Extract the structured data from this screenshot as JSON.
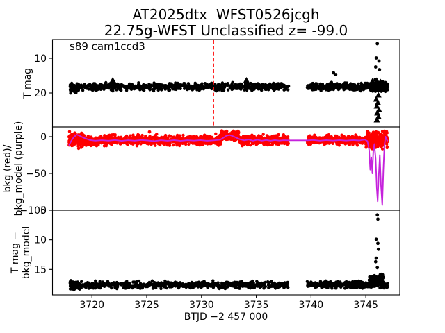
{
  "colors": {
    "data_black": "#000000",
    "data_red": "#ff0000",
    "model_purple": "#c522dc",
    "vline_red": "#ff1212",
    "frame": "#000000"
  },
  "chart_data": {
    "type": "scatter",
    "title": "AT2025dtx  WFST0526jcgh",
    "subtitle": "22.75g-WFST Unclassified z= -99.0",
    "annotation": "s89 cam1ccd3",
    "xlabel": "BTJD −2 457 000",
    "x_axis": {
      "lim": [
        3716.4,
        3748.1
      ],
      "ticks": [
        3720,
        3725,
        3730,
        3735,
        3740,
        3745
      ],
      "tick_labels": [
        "3720",
        "3725",
        "3730",
        "3735",
        "3740",
        "3745"
      ]
    },
    "panels": [
      {
        "name": "tmag",
        "ylabel_lines": [
          "T mag"
        ],
        "ylim_top": 4.6,
        "ylim_bottom": 29.8,
        "yticks": [
          10,
          20
        ],
        "ytick_labels": [
          "10",
          "20"
        ],
        "marker_color": "#000000",
        "vline": {
          "x": 3731.1,
          "color": "#ff1212",
          "dash": "5 3.4"
        },
        "band_segments": [
          {
            "t0": 3718.0,
            "t1": 3718.8,
            "center": 18.6,
            "spread": 2.0,
            "n": 90
          },
          {
            "t0": 3718.6,
            "t1": 3737.95,
            "center": 18.2,
            "spread": 1.5,
            "n": 680
          },
          {
            "t0": 3739.65,
            "t1": 3745.7,
            "center": 18.2,
            "spread": 1.5,
            "n": 300
          },
          {
            "t0": 3745.6,
            "t1": 3747.0,
            "center": 18.3,
            "spread": 2.0,
            "n": 130
          }
        ],
        "dots": [
          [
            3746.05,
            5.8
          ],
          [
            3745.95,
            9.9
          ],
          [
            3746.2,
            10.8
          ],
          [
            3745.9,
            12.5
          ],
          [
            3746.25,
            13.3
          ],
          [
            3745.85,
            16.2
          ],
          [
            3742.05,
            14.2
          ],
          [
            3742.25,
            14.7
          ],
          [
            3746.05,
            28.0
          ]
        ],
        "triangles": [
          [
            3721.9,
            16.3
          ],
          [
            3734.1,
            16.3
          ],
          [
            3745.6,
            16.6
          ],
          [
            3746.0,
            16.4
          ],
          [
            3746.35,
            16.8
          ],
          [
            3746.6,
            17.4
          ],
          [
            3746.15,
            20.6
          ],
          [
            3745.95,
            21.8
          ],
          [
            3746.1,
            22.8
          ],
          [
            3746.0,
            23.8
          ],
          [
            3746.2,
            24.8
          ],
          [
            3746.05,
            25.8
          ],
          [
            3746.15,
            26.8
          ],
          [
            3746.0,
            27.8
          ]
        ]
      },
      {
        "name": "bkg",
        "ylabel_lines": [
          "bkg (red)/",
          "bkg_model (purple)"
        ],
        "ylim_top": 13.2,
        "ylim_bottom": -100,
        "yticks": [
          0,
          -50,
          -100
        ],
        "ytick_labels": [
          "0",
          "−50",
          "−100"
        ],
        "marker_color": "#ff0000",
        "band_segments": [
          {
            "t0": 3717.9,
            "t1": 3719.3,
            "center": -4.5,
            "spread": 13,
            "n": 150
          },
          {
            "t0": 3719.3,
            "t1": 3720.6,
            "center": -7.0,
            "spread": 9.5,
            "n": 120
          },
          {
            "t0": 3720.6,
            "t1": 3731.8,
            "center": -4.7,
            "spread": 9.0,
            "n": 760
          },
          {
            "t0": 3731.8,
            "t1": 3733.4,
            "center": 1.5,
            "spread": 8.5,
            "n": 150
          },
          {
            "t0": 3733.4,
            "t1": 3737.95,
            "center": -5.0,
            "spread": 9.0,
            "n": 360
          },
          {
            "t0": 3739.65,
            "t1": 3745.1,
            "center": -4.7,
            "spread": 8.5,
            "n": 420
          },
          {
            "t0": 3745.0,
            "t1": 3747.0,
            "center": -5.0,
            "spread": 15,
            "n": 230
          }
        ],
        "dots": [
          [
            3725.25,
            6.5
          ]
        ],
        "triangles": [],
        "line": {
          "color": "#c522dc",
          "points": [
            [
              3717.9,
              -12
            ],
            [
              3718.1,
              -6
            ],
            [
              3718.35,
              -0.5
            ],
            [
              3718.6,
              2.8
            ],
            [
              3718.85,
              1.5
            ],
            [
              3719.1,
              -0.5
            ],
            [
              3719.4,
              -2.5
            ],
            [
              3719.8,
              -4.5
            ],
            [
              3720.3,
              -5.5
            ],
            [
              3720.9,
              -4.8
            ],
            [
              3721.5,
              -5.5
            ],
            [
              3722.1,
              -4.5
            ],
            [
              3722.7,
              -5.8
            ],
            [
              3723.3,
              -4.8
            ],
            [
              3723.9,
              -5.5
            ],
            [
              3724.5,
              -4.5
            ],
            [
              3725.1,
              -5.2
            ],
            [
              3725.7,
              -6.0
            ],
            [
              3726.3,
              -4.8
            ],
            [
              3726.9,
              -5.6
            ],
            [
              3727.5,
              -4.6
            ],
            [
              3728.1,
              -5.8
            ],
            [
              3728.7,
              -4.8
            ],
            [
              3729.3,
              -5.4
            ],
            [
              3729.9,
              -4.6
            ],
            [
              3730.5,
              -5.6
            ],
            [
              3731.1,
              -5.0
            ],
            [
              3731.7,
              -4.2
            ],
            [
              3732.0,
              -1.5
            ],
            [
              3732.3,
              1.5
            ],
            [
              3732.6,
              2.2
            ],
            [
              3732.9,
              0.5
            ],
            [
              3733.2,
              -1.5
            ],
            [
              3733.5,
              -3.5
            ],
            [
              3733.9,
              -5.0
            ],
            [
              3734.3,
              -4.0
            ],
            [
              3734.7,
              -5.5
            ],
            [
              3735.1,
              -4.2
            ],
            [
              3735.5,
              -5.5
            ],
            [
              3735.9,
              -4.5
            ],
            [
              3736.3,
              -5.5
            ],
            [
              3736.7,
              -4.6
            ],
            [
              3737.1,
              -5.4
            ],
            [
              3737.5,
              -4.8
            ],
            [
              3737.95,
              -5.0
            ],
            [
              3739.65,
              -5.0
            ],
            [
              3740.2,
              -4.5
            ],
            [
              3740.8,
              -5.5
            ],
            [
              3741.4,
              -4.6
            ],
            [
              3742.0,
              -5.4
            ],
            [
              3742.6,
              -4.6
            ],
            [
              3743.2,
              -5.4
            ],
            [
              3743.8,
              -4.6
            ],
            [
              3744.4,
              -5.2
            ],
            [
              3744.9,
              -4.0
            ],
            [
              3745.15,
              -6.0
            ],
            [
              3745.3,
              -18
            ],
            [
              3745.4,
              -45
            ],
            [
              3745.5,
              -28
            ],
            [
              3745.6,
              -50
            ],
            [
              3745.68,
              -20
            ],
            [
              3745.78,
              -10
            ],
            [
              3745.9,
              -30
            ],
            [
              3746.0,
              -70
            ],
            [
              3746.08,
              -88
            ],
            [
              3746.18,
              -55
            ],
            [
              3746.28,
              -25
            ],
            [
              3746.38,
              -65
            ],
            [
              3746.5,
              -93
            ],
            [
              3746.6,
              -45
            ],
            [
              3746.7,
              -12
            ],
            [
              3746.8,
              0
            ],
            [
              3746.9,
              -4
            ],
            [
              3747.0,
              -6
            ]
          ]
        }
      },
      {
        "name": "tmag-minus-bkgmodel",
        "ylabel_lines": [
          "T mag −",
          "bkg_model"
        ],
        "ylim_top": 5.0,
        "ylim_bottom": 19.3,
        "yticks": [
          5,
          10,
          15
        ],
        "ytick_labels": [
          "5",
          "10",
          "15"
        ],
        "marker_color": "#000000",
        "band_segments": [
          {
            "t0": 3718.0,
            "t1": 3718.9,
            "center": 17.7,
            "spread": 1.0,
            "n": 90
          },
          {
            "t0": 3718.8,
            "t1": 3737.95,
            "center": 17.6,
            "spread": 0.8,
            "n": 640
          },
          {
            "t0": 3739.65,
            "t1": 3745.4,
            "center": 17.6,
            "spread": 0.8,
            "n": 320
          },
          {
            "t0": 3745.3,
            "t1": 3746.6,
            "center": 16.9,
            "spread": 1.4,
            "n": 140
          },
          {
            "t0": 3746.5,
            "t1": 3747.0,
            "center": 17.7,
            "spread": 0.7,
            "n": 30
          }
        ],
        "dots": [
          [
            3746.05,
            5.8
          ],
          [
            3746.1,
            6.5
          ],
          [
            3745.95,
            9.9
          ],
          [
            3746.1,
            10.6
          ],
          [
            3746.15,
            11.6
          ],
          [
            3745.95,
            13.1
          ],
          [
            3745.9,
            13.7
          ],
          [
            3746.05,
            14.7
          ],
          [
            3746.3,
            18.1
          ]
        ],
        "triangles": []
      }
    ]
  }
}
